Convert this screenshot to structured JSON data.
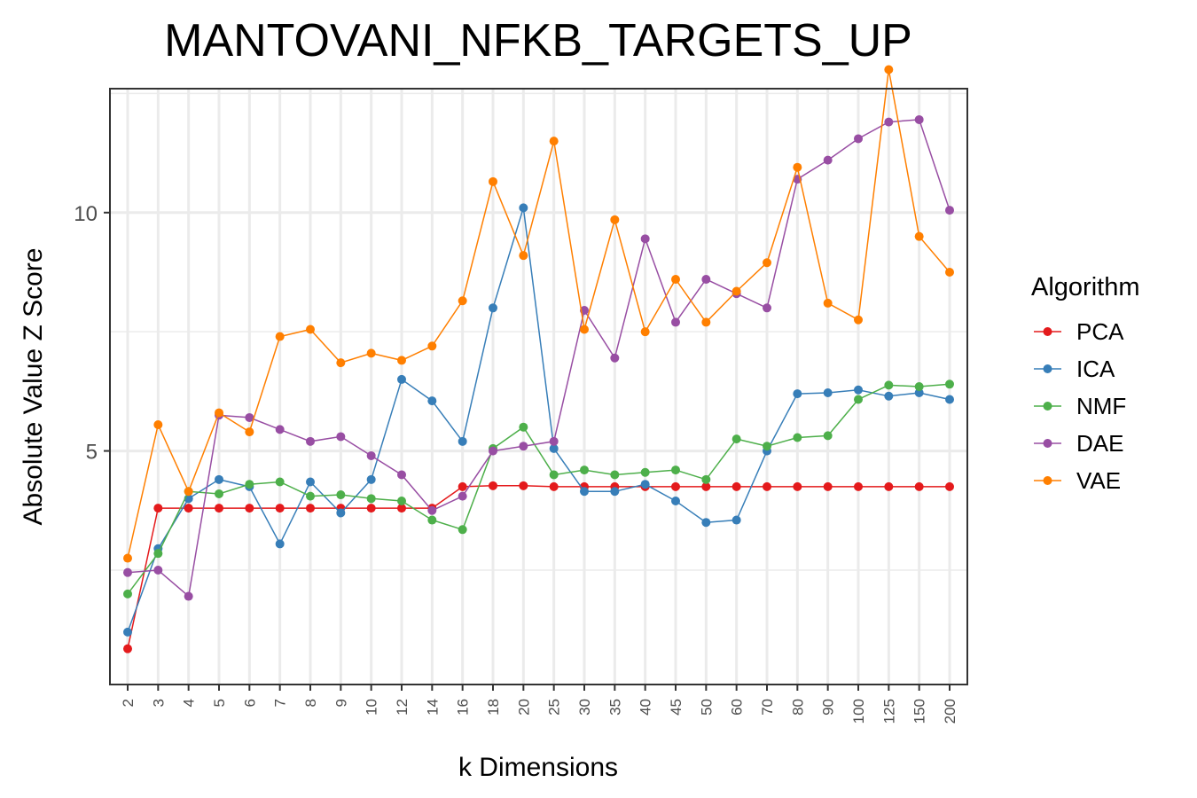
{
  "chart_data": {
    "type": "line",
    "title": "MANTOVANI_NFKB_TARGETS_UP",
    "xlabel": "k Dimensions",
    "ylabel": "Absolute Value Z Score",
    "ylim": [
      0.1,
      12.6
    ],
    "yticks": [
      5,
      10
    ],
    "grid": true,
    "legend": {
      "title": "Algorithm",
      "placement": "right"
    },
    "categories": [
      "2",
      "3",
      "4",
      "5",
      "6",
      "7",
      "8",
      "9",
      "10",
      "12",
      "14",
      "16",
      "18",
      "20",
      "25",
      "30",
      "35",
      "40",
      "45",
      "50",
      "60",
      "70",
      "80",
      "90",
      "100",
      "125",
      "150",
      "200"
    ],
    "series": [
      {
        "name": "PCA",
        "color": "#e41a1c",
        "values": [
          0.85,
          3.8,
          3.8,
          3.8,
          3.8,
          3.8,
          3.8,
          3.8,
          3.8,
          3.8,
          3.8,
          4.25,
          4.27,
          4.27,
          4.25,
          4.25,
          4.25,
          4.25,
          4.25,
          4.25,
          4.25,
          4.25,
          4.25,
          4.25,
          4.25,
          4.25,
          4.25,
          4.25
        ]
      },
      {
        "name": "ICA",
        "color": "#377eb8",
        "values": [
          1.2,
          2.95,
          4.0,
          4.4,
          4.25,
          3.05,
          4.35,
          3.7,
          4.4,
          6.5,
          6.05,
          5.2,
          8.0,
          10.1,
          5.05,
          4.15,
          4.15,
          4.3,
          3.95,
          3.5,
          3.55,
          5.0,
          6.2,
          6.22,
          6.28,
          6.15,
          6.22,
          6.08
        ]
      },
      {
        "name": "NMF",
        "color": "#4daf4a",
        "values": [
          2.0,
          2.85,
          4.15,
          4.1,
          4.3,
          4.35,
          4.05,
          4.08,
          4.0,
          3.95,
          3.55,
          3.35,
          5.05,
          5.5,
          4.5,
          4.6,
          4.5,
          4.55,
          4.6,
          4.4,
          5.25,
          5.1,
          5.28,
          5.32,
          6.08,
          6.38,
          6.35,
          6.4
        ]
      },
      {
        "name": "DAE",
        "color": "#984ea3",
        "values": [
          2.45,
          2.5,
          1.95,
          5.75,
          5.7,
          5.45,
          5.2,
          5.3,
          4.9,
          4.5,
          3.75,
          4.05,
          5.0,
          5.1,
          5.2,
          7.95,
          6.95,
          9.45,
          7.7,
          8.6,
          8.3,
          8.0,
          10.7,
          11.1,
          11.55,
          11.9,
          11.95,
          10.05
        ]
      },
      {
        "name": "VAE",
        "color": "#ff7f00",
        "values": [
          2.75,
          5.55,
          4.15,
          5.8,
          5.4,
          7.4,
          7.55,
          6.85,
          7.05,
          6.9,
          7.2,
          8.15,
          10.65,
          9.1,
          11.5,
          7.55,
          9.85,
          7.5,
          8.6,
          7.7,
          8.35,
          8.95,
          10.95,
          8.1,
          7.75,
          13.0,
          9.5,
          8.75
        ]
      }
    ]
  }
}
